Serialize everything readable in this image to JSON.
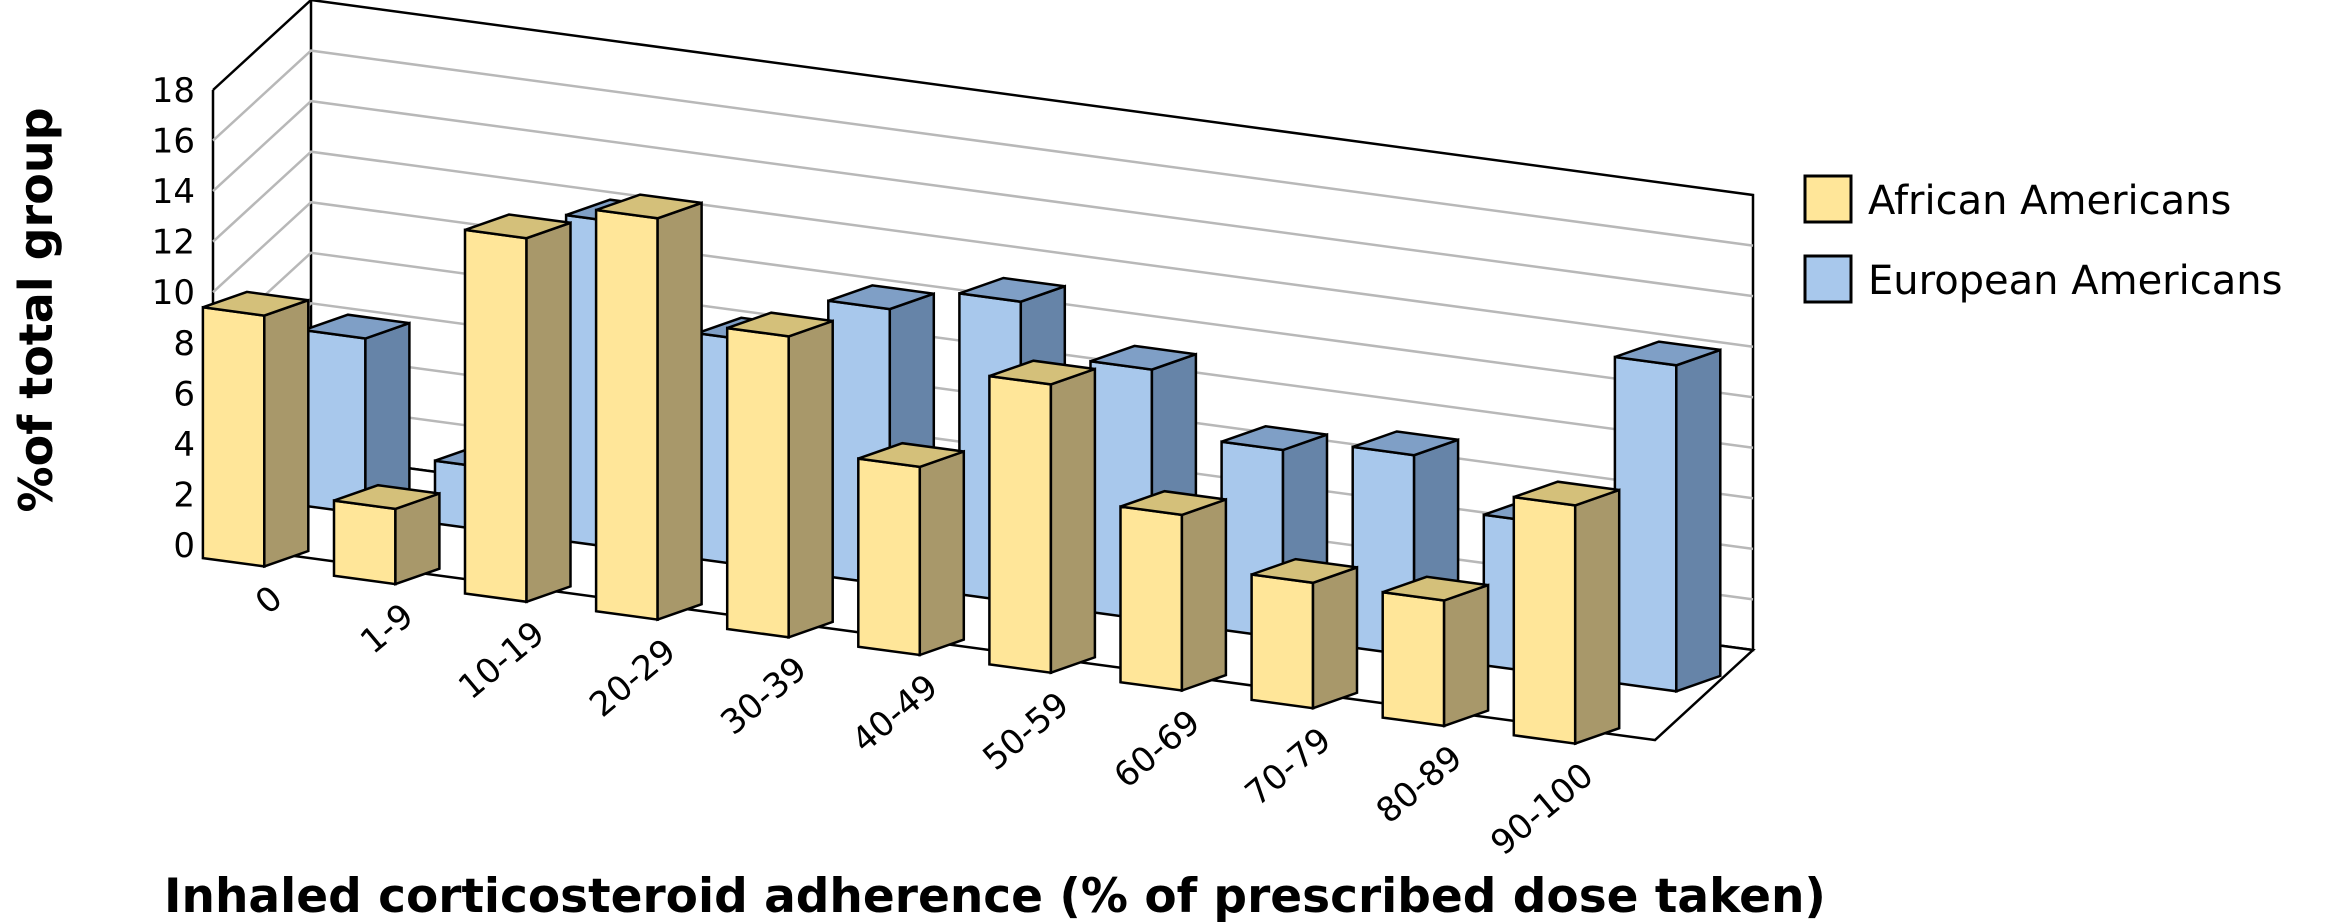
{
  "chart_data": {
    "type": "bar",
    "style": "3d-clustered-columns",
    "categories": [
      "0",
      "1-9",
      "10-19",
      "20-29",
      "30-39",
      "40-49",
      "50-59",
      "60-69",
      "70-79",
      "80-89",
      "90-100"
    ],
    "series": [
      {
        "name": "African Americans",
        "values": [
          10,
          3,
          14.5,
          16,
          12,
          7.5,
          11.5,
          7,
          5,
          5,
          9.5
        ],
        "color": "#FFE699",
        "side_color": "#A8986A",
        "top_color": "#D4C07A"
      },
      {
        "name": "European Americans",
        "values": [
          7,
          2.5,
          13,
          9,
          11,
          12,
          10,
          7.5,
          8,
          6,
          13
        ],
        "color": "#A8C8EC",
        "side_color": "#6684A8",
        "top_color": "#7F9FC6"
      }
    ],
    "xlabel": "Inhaled corticosteroid adherence (% of prescribed dose taken)",
    "ylabel": "%of total group",
    "ylim": [
      0,
      18
    ],
    "yticks": [
      0,
      2,
      4,
      6,
      8,
      10,
      12,
      14,
      16,
      18
    ],
    "grid": true,
    "legend_position": "right"
  }
}
